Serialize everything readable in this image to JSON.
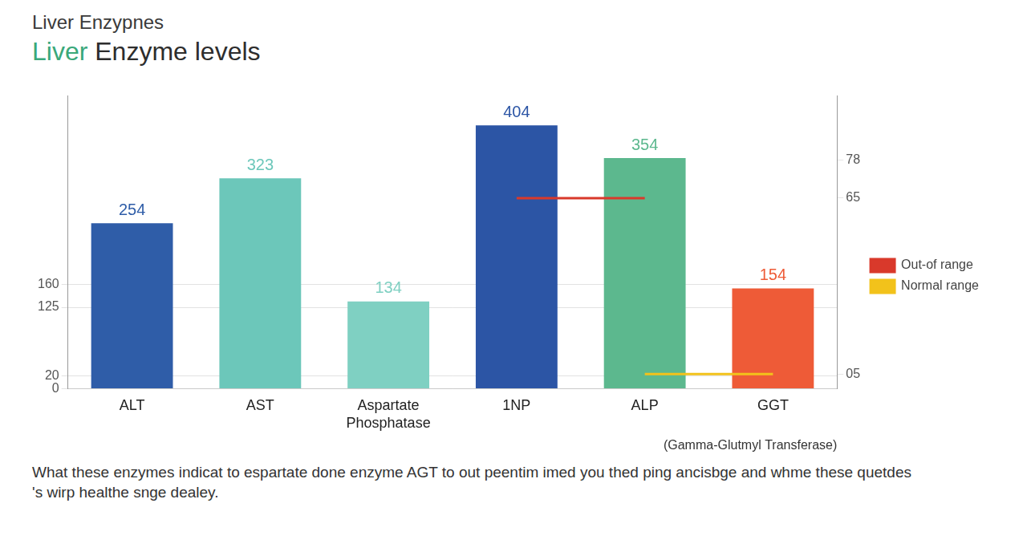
{
  "chart_data": {
    "type": "bar",
    "title": "Liver Enzypnes",
    "subtitle": "Liver Enzyme levels",
    "categories": [
      "ALT",
      "AST",
      "Aspartate Phosphatase",
      "1NP",
      "ALP",
      "GGT"
    ],
    "values": [
      254,
      323,
      134,
      404,
      354,
      154
    ],
    "colors": [
      "#2f5da8",
      "#6cc7ba",
      "#7fd0c2",
      "#2c55a5",
      "#5cb88e",
      "#ee5b37"
    ],
    "data_labels": true,
    "ylim": [
      0,
      450
    ],
    "yticks": [
      0,
      20,
      125,
      160
    ],
    "y2lim": [
      0,
      100
    ],
    "y2ticks": [
      {
        "value": 5,
        "label": "05"
      },
      65,
      78
    ],
    "grid": true,
    "legend": "right",
    "series": [
      {
        "name": "Out-of range",
        "type": "line",
        "axis": "y2",
        "color": "#d9392b",
        "values": [
          null,
          null,
          null,
          65,
          65,
          null
        ]
      },
      {
        "name": "Normal range",
        "type": "line",
        "axis": "y2",
        "color": "#f2c21b",
        "values": [
          null,
          null,
          null,
          null,
          5,
          5
        ]
      }
    ],
    "annotations": [
      "(Gamma-Glutmyl Transferase)"
    ],
    "caption": "What these enzymes indicat to espartate done enzyme AGT to out peentim imed you thed ping ancisbge and whme these quetdes 's wirp healthe snge dealey."
  }
}
